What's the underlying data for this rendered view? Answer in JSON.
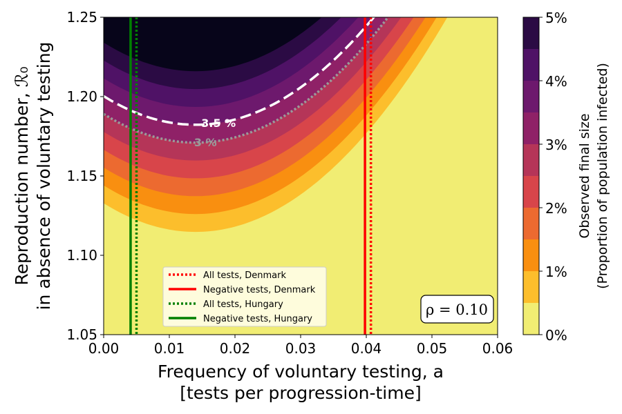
{
  "chart_data": {
    "type": "contour",
    "title": "",
    "xlabel_line1": "Frequency of voluntary testing, a",
    "xlabel_line2": "[tests per progression-time]",
    "ylabel_line1": "Reproduction number, ℛ₀",
    "ylabel_line2": "in absence of voluntary testing",
    "xlim": [
      0.0,
      0.06
    ],
    "ylim": [
      1.05,
      1.25
    ],
    "x_ticks": [
      0.0,
      0.01,
      0.02,
      0.03,
      0.04,
      0.05,
      0.06
    ],
    "x_tick_labels": [
      "0.00",
      "0.01",
      "0.02",
      "0.03",
      "0.04",
      "0.05",
      "0.06"
    ],
    "y_ticks": [
      1.05,
      1.1,
      1.15,
      1.2,
      1.25
    ],
    "y_tick_labels": [
      "1.05",
      "1.10",
      "1.15",
      "1.20",
      "1.25"
    ],
    "colorbar": {
      "label_line1": "Observed final size",
      "label_line2": "(Proportion of population infected)",
      "levels": [
        0,
        0.5,
        1,
        1.5,
        2,
        2.5,
        3,
        3.5,
        4,
        4.5,
        5
      ],
      "tick_values": [
        0,
        1,
        2,
        3,
        4,
        5
      ],
      "tick_labels": [
        "0%",
        "1%",
        "2%",
        "3%",
        "4%",
        "5%"
      ],
      "colors": [
        "#f1ed73",
        "#fcbe2c",
        "#f98f10",
        "#ec6a30",
        "#d8454a",
        "#b53558",
        "#8f2167",
        "#6d196d",
        "#4f1266",
        "#2b0b44",
        "#07051a"
      ]
    },
    "contour_model": {
      "description_note_removed": true,
      "y0": 1.1485,
      "quad": 92.0,
      "x_min": 0.014,
      "level_step": 0.0225
    },
    "highlight_contours": [
      {
        "label": "3.5 %",
        "level": 3.5,
        "color": "#ffffff",
        "style": "dashed",
        "label_x": 0.0175
      },
      {
        "label": "3 %",
        "level": 3.0,
        "color": "#9a9a9a",
        "style": "dotted",
        "label_x": 0.0155
      }
    ],
    "vertical_lines": [
      {
        "name": "All tests, Denmark",
        "x": 0.0407,
        "color": "#ff0000",
        "style": "dotted"
      },
      {
        "name": "Negative tests, Denmark",
        "x": 0.0398,
        "color": "#ff0000",
        "style": "solid"
      },
      {
        "name": "All tests, Hungary",
        "x": 0.005,
        "color": "#008000",
        "style": "dotted"
      },
      {
        "name": "Negative tests, Hungary",
        "x": 0.0041,
        "color": "#008000",
        "style": "solid"
      }
    ],
    "legend_position": "lower-center",
    "annotation": "ρ = 0.10",
    "grid": false
  }
}
